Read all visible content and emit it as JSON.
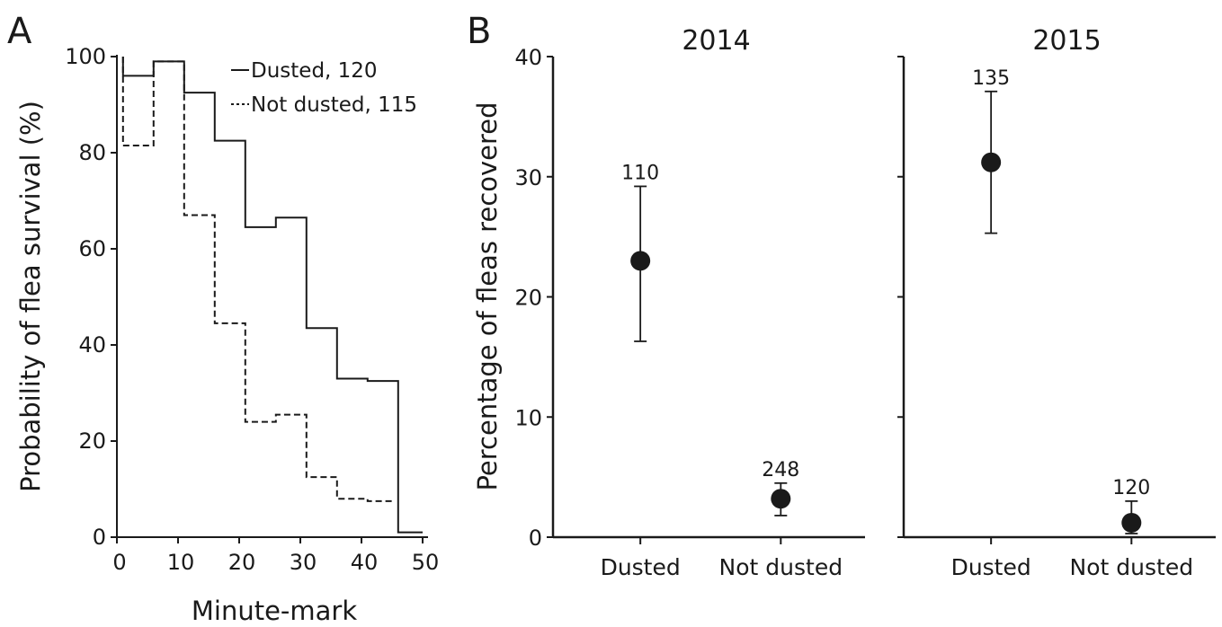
{
  "colors": {
    "ink": "#1a1a1a",
    "background": "#ffffff"
  },
  "panel_labels": {
    "a": "A",
    "b": "B"
  },
  "chart_data": [
    {
      "type": "line",
      "panel": "A",
      "title": "",
      "xlabel": "Minute-mark",
      "ylabel": "Probability of flea survival (%)",
      "xlim": [
        0,
        50
      ],
      "ylim": [
        0,
        100
      ],
      "xticks": [
        0,
        10,
        20,
        30,
        40,
        50
      ],
      "yticks": [
        0,
        20,
        40,
        60,
        80,
        100
      ],
      "grid": false,
      "legend_position": "top-right",
      "series": [
        {
          "name": "Dusted, 120",
          "line_style": "solid",
          "x": [
            1,
            6,
            11,
            16,
            21,
            26,
            31,
            36,
            41,
            46,
            50
          ],
          "y": [
            96,
            99,
            92.5,
            82.5,
            64.5,
            66.5,
            43.5,
            33,
            32.5,
            1,
            1
          ]
        },
        {
          "name": "Not dusted, 115",
          "line_style": "dashed",
          "x": [
            1,
            6,
            11,
            16,
            21,
            26,
            31,
            36,
            41,
            45
          ],
          "y": [
            81.5,
            99,
            67,
            44.5,
            24,
            25.5,
            12.5,
            8,
            7.5,
            7.5
          ]
        }
      ]
    },
    {
      "type": "scatter",
      "panel": "B",
      "title": "2014",
      "xlabel": "",
      "ylabel": "Percentage of fleas recovered",
      "ylim": [
        0,
        40
      ],
      "yticks": [
        0,
        10,
        20,
        30,
        40
      ],
      "grid": false,
      "categories": [
        "Dusted",
        "Not dusted"
      ],
      "values": [
        23,
        3.2
      ],
      "error_low": [
        16.3,
        1.8
      ],
      "error_high": [
        29.2,
        4.5
      ],
      "n_labels": [
        "110",
        "248"
      ]
    },
    {
      "type": "scatter",
      "panel": "B",
      "title": "2015",
      "xlabel": "",
      "ylabel": "",
      "ylim": [
        0,
        40
      ],
      "yticks": [
        0,
        10,
        20,
        30,
        40
      ],
      "grid": false,
      "categories": [
        "Dusted",
        "Not dusted"
      ],
      "values": [
        31.2,
        1.2
      ],
      "error_low": [
        25.3,
        0.3
      ],
      "error_high": [
        37.1,
        3.0
      ],
      "n_labels": [
        "135",
        "120"
      ]
    }
  ]
}
